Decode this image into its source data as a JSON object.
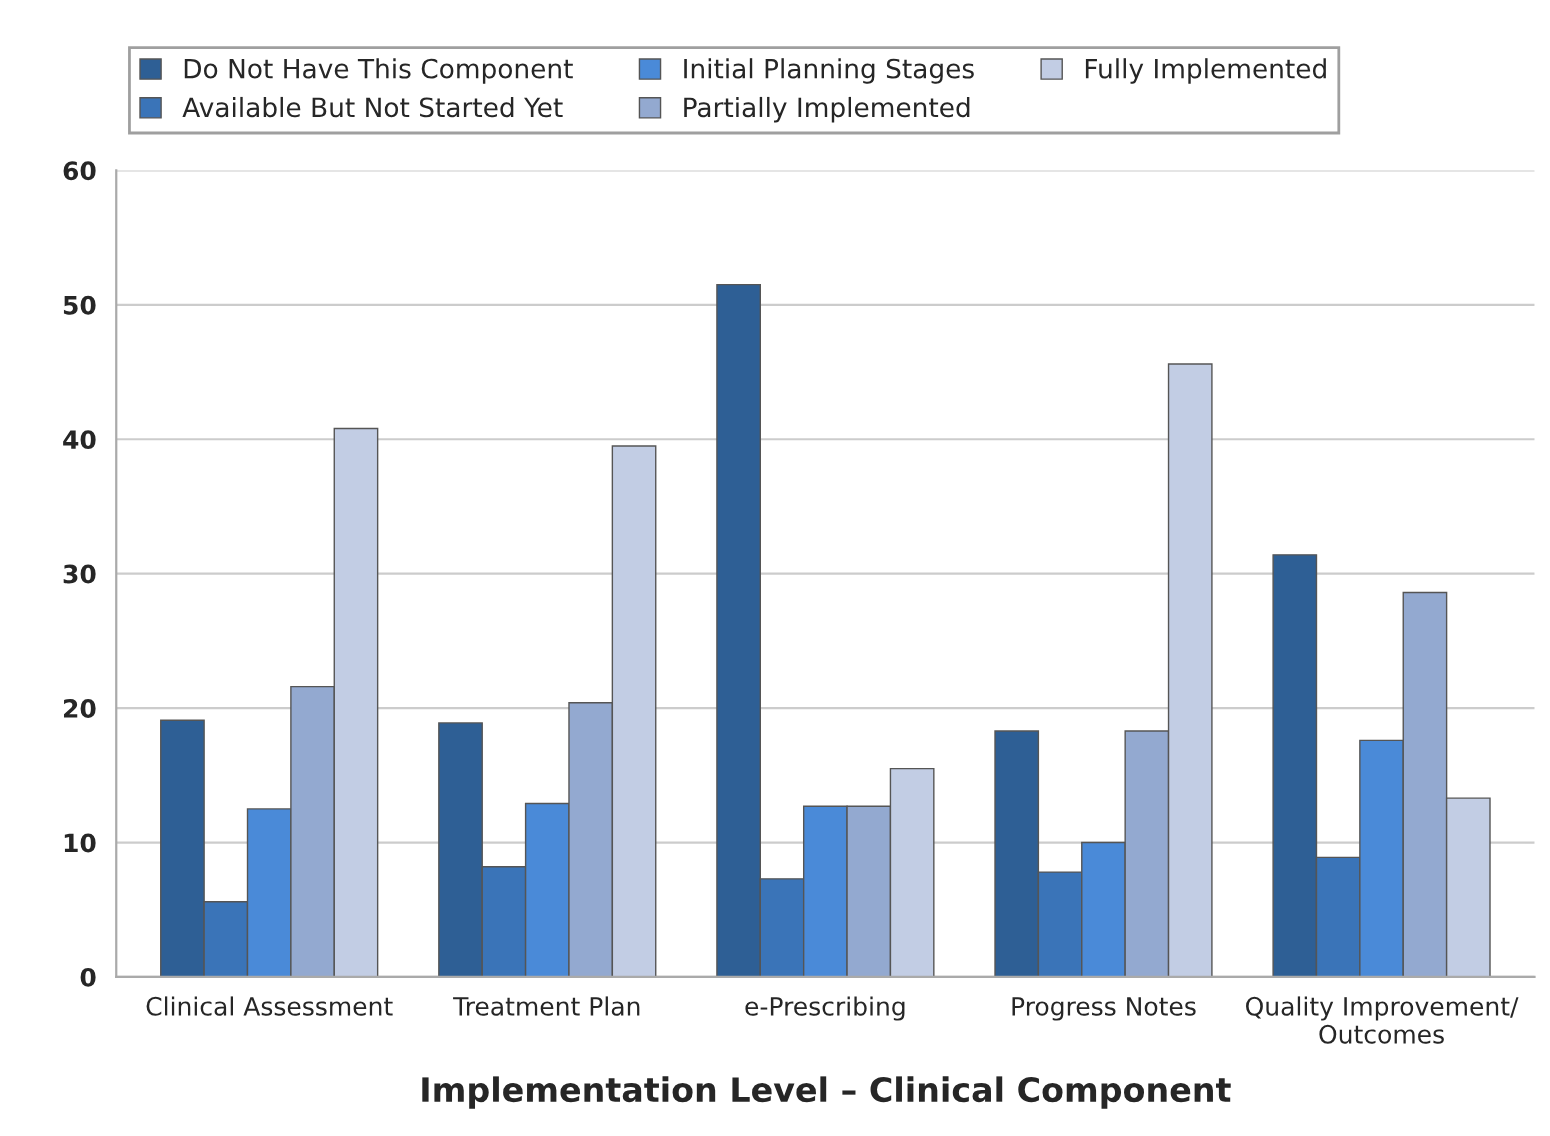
{
  "chart_data": {
    "type": "bar",
    "xlabel": "Implementation Level – Clinical Component",
    "categories": [
      "Clinical Assessment",
      "Treatment Plan",
      "e-Prescribing",
      "Progress Notes",
      "Quality Improvement/\nOutcomes"
    ],
    "series": [
      {
        "name": "Do Not Have This Component",
        "color": "#2e5f95",
        "values": [
          19.1,
          18.9,
          51.5,
          18.3,
          31.4
        ]
      },
      {
        "name": "Available But Not Started Yet",
        "color": "#3a74b8",
        "values": [
          5.6,
          8.2,
          7.3,
          7.8,
          8.9
        ]
      },
      {
        "name": "Initial Planning Stages",
        "color": "#4a8ad8",
        "values": [
          12.5,
          12.9,
          12.7,
          10.0,
          17.6
        ]
      },
      {
        "name": "Partially Implemented",
        "color": "#93a9d0",
        "values": [
          21.6,
          20.4,
          12.7,
          18.3,
          28.6
        ]
      },
      {
        "name": "Fully Implemented",
        "color": "#c2cde4",
        "values": [
          40.8,
          39.5,
          15.5,
          45.6,
          13.3
        ]
      }
    ],
    "ylim": [
      0,
      60
    ],
    "yticks": [
      0,
      10,
      20,
      30,
      40,
      50,
      60
    ],
    "grid": "y",
    "legend": "top"
  }
}
